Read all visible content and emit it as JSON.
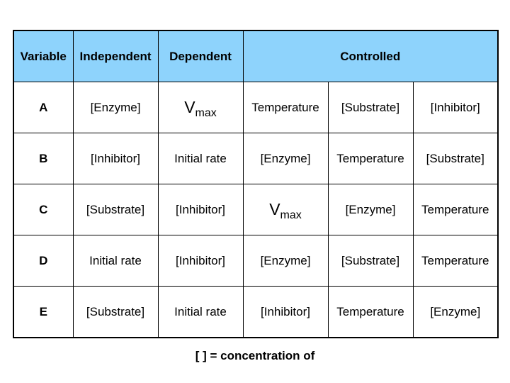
{
  "headers": [
    "Variable",
    "Independent",
    "Dependent",
    "Controlled"
  ],
  "rows": [
    {
      "variable": "A",
      "cells": [
        "[Enzyme]",
        {
          "main": "V",
          "sub": "max"
        },
        "Temperature",
        "[Substrate]",
        "[Inhibitor]"
      ]
    },
    {
      "variable": "B",
      "cells": [
        "[Inhibitor]",
        "Initial rate",
        "[Enzyme]",
        "Temperature",
        "[Substrate]"
      ]
    },
    {
      "variable": "C",
      "cells": [
        "[Substrate]",
        "[Inhibitor]",
        {
          "main": "V",
          "sub": "max"
        },
        "[Enzyme]",
        "Temperature"
      ]
    },
    {
      "variable": "D",
      "cells": [
        "Initial rate",
        "[Inhibitor]",
        "[Enzyme]",
        "[Substrate]",
        "Temperature"
      ]
    },
    {
      "variable": "E",
      "cells": [
        "[Substrate]",
        "Initial rate",
        "[Inhibitor]",
        "Temperature",
        "[Enzyme]"
      ]
    }
  ],
  "footnote": "[ ] = concentration of",
  "colors": {
    "header_bg": "#8ed3fc"
  }
}
